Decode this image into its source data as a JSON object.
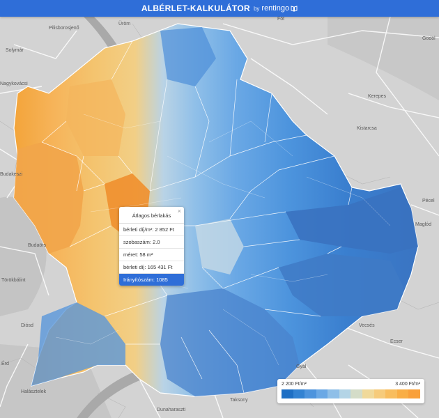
{
  "header": {
    "title": "ALBÉRLET-KALKULÁTOR",
    "by": "by",
    "brand": "rentingo",
    "brand_icon": "book-icon"
  },
  "popup": {
    "title": "Átlagos bérlakás",
    "close_label": "×",
    "rows": [
      "bérleti díj/m²: 2 852 Ft",
      "szobaszám: 2.0",
      "méret: 58 m²",
      "bérleti díj: 165 431 Ft"
    ],
    "highlight": "Irányítószám: 1085"
  },
  "legend": {
    "min_label": "2 200 Ft/m²",
    "max_label": "3 400 Ft/m²",
    "colors": [
      "#1e6fc4",
      "#3282d2",
      "#4d94dd",
      "#6aa8e5",
      "#8fbfe8",
      "#b3d4e6",
      "#d4dcc8",
      "#f0d99a",
      "#f6cb7b",
      "#f8bd5e",
      "#f9ae45",
      "#f9a03a"
    ]
  },
  "map": {
    "labels": [
      "Főt",
      "Gödöl",
      "Kerepes",
      "Kistarcsa",
      "Pécel",
      "Vecsés",
      "Gyál",
      "Budakeszi",
      "Budaörs",
      "Diósd",
      "Halásztelek",
      "Dunaharaszti",
      "Pilisborosjenő",
      "Solymár",
      "Nagykovácsi",
      "Üröm",
      "Törökbálint",
      "Érd",
      "Taksony",
      "Ecser",
      "Maglód"
    ]
  }
}
